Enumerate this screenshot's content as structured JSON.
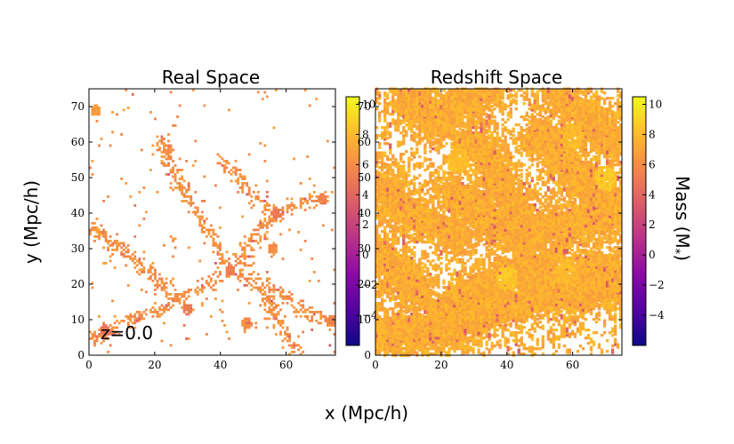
{
  "chart_data": {
    "type": "heatmap",
    "xlabel": "x (Mpc/h)",
    "ylabel": "y (Mpc/h)",
    "colorbar_label": "Mass (M",
    "colorbar_label_sub": "*",
    "colorbar_label_close": ")",
    "colormap": "plasma",
    "colormap_stops": [
      "#0d0887",
      "#5402a3",
      "#8b0aa5",
      "#b93289",
      "#db5c68",
      "#f48849",
      "#febd2a",
      "#f0f921"
    ],
    "panels": [
      {
        "title": "Real Space",
        "annotation": "z=0.0",
        "xlim": [
          0,
          75
        ],
        "ylim": [
          0,
          75
        ],
        "xticks": [
          "0",
          "20",
          "40",
          "60"
        ],
        "yticks": [
          "0",
          "10",
          "20",
          "30",
          "40",
          "50",
          "60",
          "70"
        ],
        "color_range": [
          -6,
          10.5
        ],
        "cbar_ticks": [
          "−4",
          "−2",
          "0",
          "2",
          "4",
          "6",
          "8",
          "10"
        ],
        "filaments": [
          {
            "x": [
              2,
              10,
              20,
              27,
              33,
              38,
              43,
              48
            ],
            "y": [
              5,
              9,
              12,
              15,
              18,
              21,
              24,
              27
            ]
          },
          {
            "x": [
              43,
              52,
              60,
              66,
              72,
              75
            ],
            "y": [
              24,
              20,
              16,
              12,
              10,
              9
            ]
          },
          {
            "x": [
              43,
              48,
              53,
              57,
              62,
              67,
              71
            ],
            "y": [
              24,
              30,
              36,
              40,
              42,
              43,
              44
            ]
          },
          {
            "x": [
              43,
              38,
              33,
              28,
              24,
              22
            ],
            "y": [
              24,
              32,
              40,
              48,
              55,
              60
            ]
          },
          {
            "x": [
              27,
              20,
              12,
              5,
              1
            ],
            "y": [
              15,
              22,
              28,
              33,
              36
            ]
          },
          {
            "x": [
              52,
              56,
              60,
              63
            ],
            "y": [
              20,
              12,
              6,
              1
            ]
          },
          {
            "x": [
              57,
              50,
              45,
              40
            ],
            "y": [
              40,
              45,
              50,
              55
            ]
          }
        ],
        "clumps": [
          {
            "x": 71,
            "y": 44,
            "mass": 5.5
          },
          {
            "x": 43,
            "y": 24,
            "mass": 5.5
          },
          {
            "x": 30,
            "y": 13,
            "mass": 5.2
          },
          {
            "x": 57,
            "y": 40,
            "mass": 5.0
          },
          {
            "x": 2,
            "y": 69,
            "mass": 6.5
          },
          {
            "x": 56,
            "y": 30,
            "mass": 6.0
          },
          {
            "x": 24,
            "y": 58,
            "mass": 6.2
          },
          {
            "x": 48,
            "y": 9,
            "mass": 6.0
          },
          {
            "x": 74,
            "y": 10,
            "mass": 5.5
          },
          {
            "x": 5,
            "y": 7,
            "mass": 4.8
          }
        ],
        "density": 0.1
      },
      {
        "title": "Redshift Space",
        "xlim": [
          0,
          75
        ],
        "ylim": [
          0,
          75
        ],
        "xticks": [
          "0",
          "20",
          "40",
          "60"
        ],
        "yticks": [
          "0",
          "10",
          "20",
          "30",
          "40",
          "50",
          "60",
          "70"
        ],
        "color_range": [
          -6,
          10.5
        ],
        "cbar_ticks": [
          "−4",
          "−2",
          "0",
          "2",
          "4",
          "6",
          "8",
          "10"
        ],
        "filaments": [
          {
            "x": [
              0,
              10,
              20,
              30,
              40,
              50,
              60,
              70,
              75
            ],
            "y": [
              6,
              6,
              7,
              10,
              14,
              17,
              18,
              19,
              20
            ]
          },
          {
            "x": [
              20,
              27,
              33,
              40,
              47,
              55,
              62,
              70,
              75
            ],
            "y": [
              12,
              16,
              20,
              22,
              24,
              25,
              24,
              24,
              23
            ]
          },
          {
            "x": [
              25,
              30,
              35,
              40,
              48,
              55,
              62,
              68,
              75
            ],
            "y": [
              44,
              42,
              38,
              36,
              35,
              36,
              37,
              38,
              40
            ]
          },
          {
            "x": [
              30,
              34,
              38,
              42,
              44,
              46
            ],
            "y": [
              60,
              55,
              48,
              42,
              36,
              28
            ]
          },
          {
            "x": [
              0,
              5,
              10,
              15,
              20,
              25
            ],
            "y": [
              48,
              45,
              40,
              38,
              36,
              34
            ]
          },
          {
            "x": [
              50,
              55,
              60,
              65,
              70,
              75
            ],
            "y": [
              62,
              58,
              52,
              48,
              44,
              40
            ]
          },
          {
            "x": [
              10,
              15,
              20,
              25,
              30,
              35
            ],
            "y": [
              72,
              68,
              66,
              70,
              74,
              75
            ]
          },
          {
            "x": [
              55,
              60,
              65,
              70,
              75
            ],
            "y": [
              75,
              70,
              66,
              62,
              60
            ]
          },
          {
            "x": [
              0,
              4,
              8,
              12
            ],
            "y": [
              28,
              26,
              22,
              18
            ]
          }
        ],
        "clumps": [
          {
            "x": 40,
            "y": 22,
            "mass": 8.5
          },
          {
            "x": 58,
            "y": 24,
            "mass": 8.0
          },
          {
            "x": 25,
            "y": 55,
            "mass": 8.2
          },
          {
            "x": 60,
            "y": 62,
            "mass": 8.0
          },
          {
            "x": 70,
            "y": 50,
            "mass": 8.5
          }
        ],
        "density": 0.55
      }
    ]
  }
}
